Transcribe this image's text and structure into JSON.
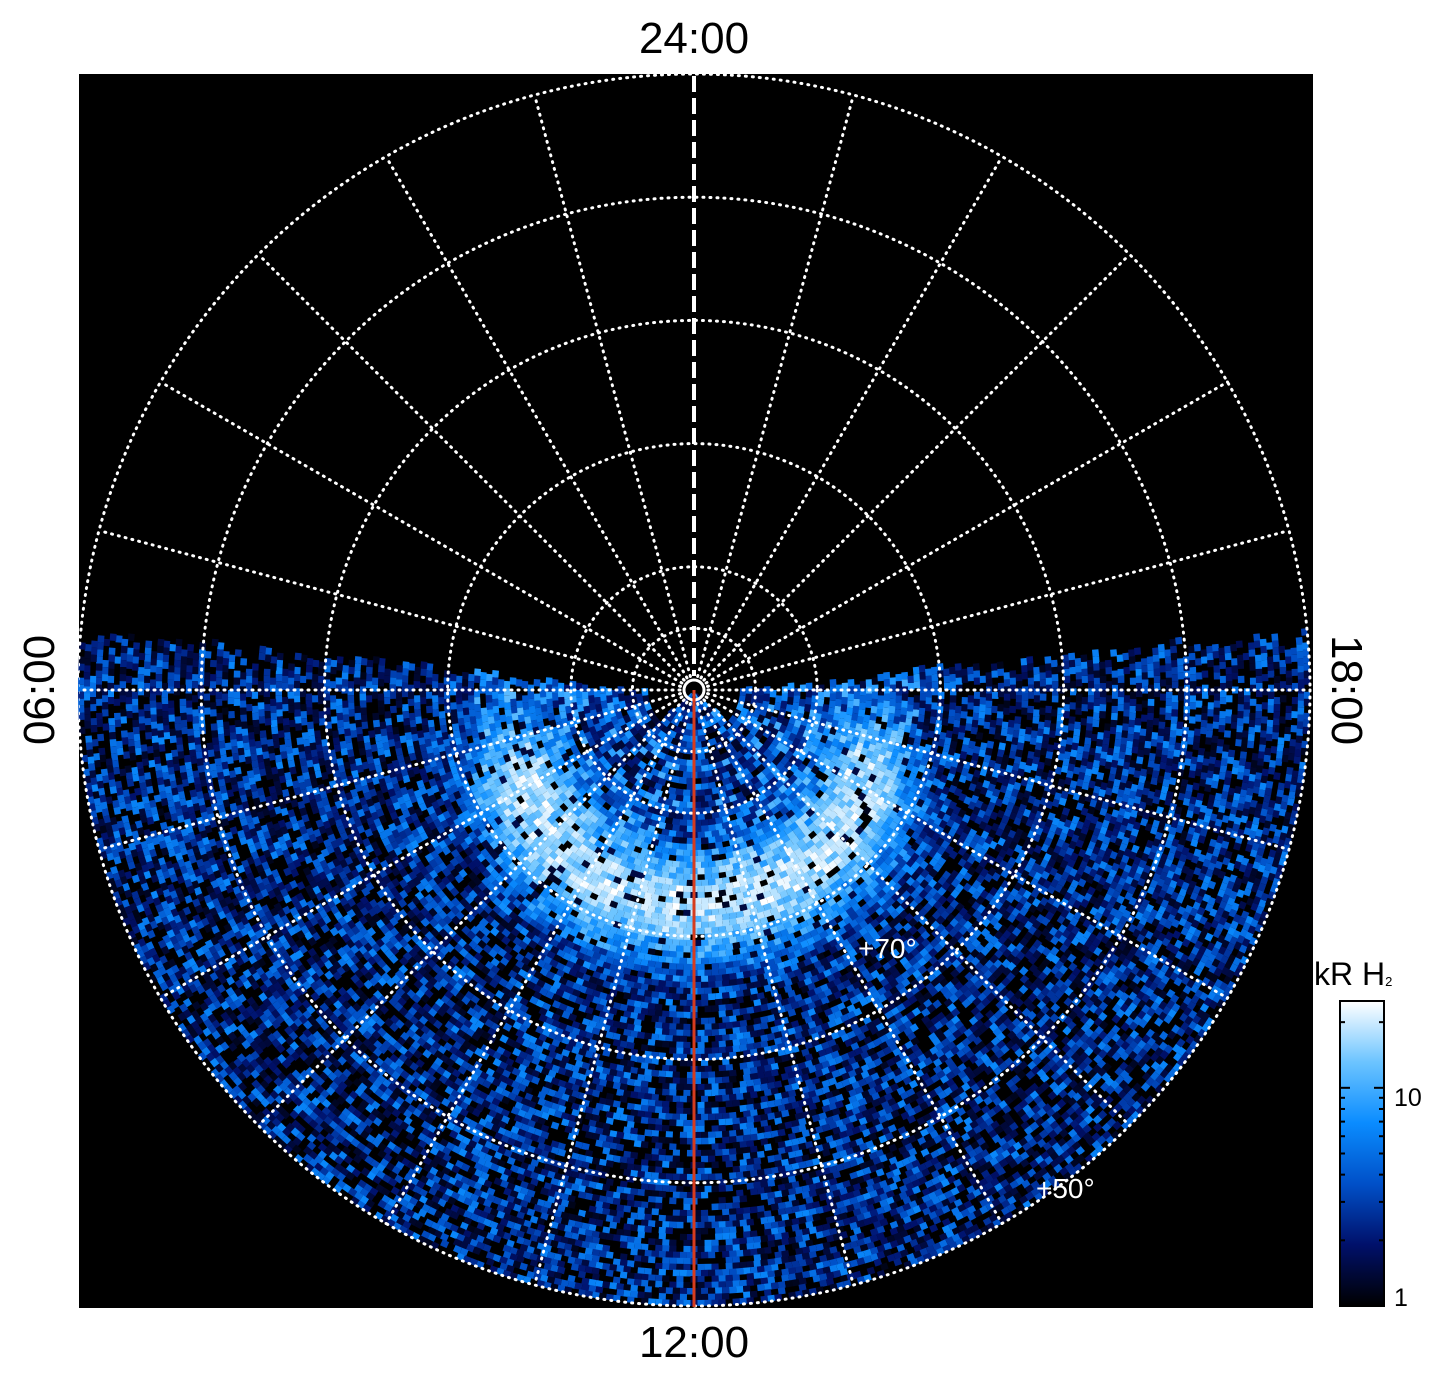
{
  "chart_data": {
    "type": "heatmap",
    "projection": "polar",
    "title": "",
    "local_time_labels": {
      "top": "24:00",
      "bottom": "12:00",
      "left": "06:00",
      "right": "18:00"
    },
    "latitude_labels": [
      "+70°",
      "+50°"
    ],
    "latitude_circles_deg": [
      85,
      80,
      70,
      60,
      50,
      40
    ],
    "outer_edge_latitude_deg": 40,
    "meridian_spacing_hours": 1,
    "grid": true,
    "colorbar": {
      "title": "kR H",
      "title_subscript": "2",
      "scale": "log",
      "range": [
        1,
        25
      ],
      "tick_labels": [
        "1",
        "10"
      ],
      "tick_values": [
        1,
        10
      ],
      "colors": [
        "#000000",
        "#00106a",
        "#0050c8",
        "#0a8cff",
        "#6cc4ff",
        "#ffffff"
      ],
      "location": "right"
    },
    "coverage": "day-side hemisphere from about 06:00 through 12:00 to 18:00, all latitudes",
    "features": [
      {
        "name": "auroral oval arc",
        "local_time_range": [
          "08:00",
          "16:00"
        ],
        "latitude_range_deg": [
          70,
          82
        ],
        "intensity_kR": [
          10,
          25
        ]
      },
      {
        "name": "background emission",
        "latitude_range_deg": [
          40,
          70
        ],
        "intensity_kR": [
          1,
          8
        ]
      }
    ],
    "overlays": [
      {
        "type": "noon meridian line",
        "color": "#d63c1e"
      },
      {
        "type": "midnight meridian",
        "style": "dashed",
        "color": "#ffffff"
      }
    ],
    "background": "#000000"
  }
}
